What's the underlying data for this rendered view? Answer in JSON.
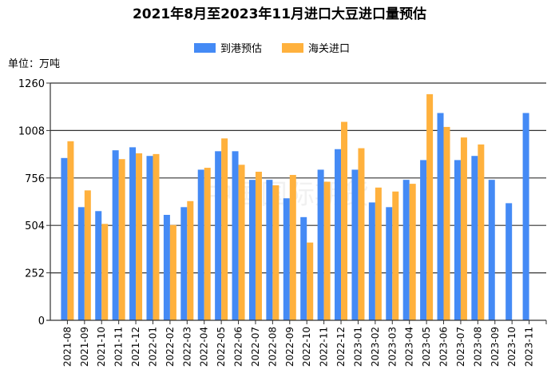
{
  "chart_data": {
    "type": "bar",
    "title": "2021年8月至2023年11月进口大豆进口量预估",
    "unit_label": "单位：万吨",
    "xlabel": "",
    "ylabel": "万吨",
    "ylim": [
      0,
      1260
    ],
    "yticks": [
      0,
      252,
      504,
      756,
      1008,
      1260
    ],
    "grid": true,
    "legend_position": "top",
    "categories": [
      "2021-08",
      "2021-09",
      "2021-10",
      "2021-11",
      "2021-12",
      "2022-01",
      "2022-02",
      "2022-03",
      "2022-04",
      "2022-05",
      "2022-06",
      "2022-07",
      "2022-08",
      "2022-09",
      "2022-10",
      "2022-11",
      "2022-12",
      "2023-01",
      "2023-02",
      "2023-03",
      "2023-04",
      "2023-05",
      "2023-06",
      "2023-07",
      "2023-08",
      "2023-09",
      "2023-10",
      "2023-11"
    ],
    "series": [
      {
        "name": "到港预估",
        "color": "#448AF5",
        "values": [
          862,
          601,
          580,
          903,
          919,
          873,
          560,
          601,
          800,
          898,
          898,
          746,
          746,
          648,
          548,
          800,
          909,
          800,
          626,
          601,
          746,
          851,
          1101,
          851,
          873,
          746,
          622,
          1101
        ]
      },
      {
        "name": "海关进口",
        "color": "#FFB13D",
        "values": [
          951,
          690,
          512,
          856,
          887,
          883,
          506,
          633,
          810,
          966,
          826,
          789,
          717,
          772,
          413,
          736,
          1054,
          914,
          705,
          684,
          725,
          1201,
          1027,
          971,
          934,
          null,
          null,
          null
        ]
      }
    ]
  },
  "watermark": "中国国际期货"
}
